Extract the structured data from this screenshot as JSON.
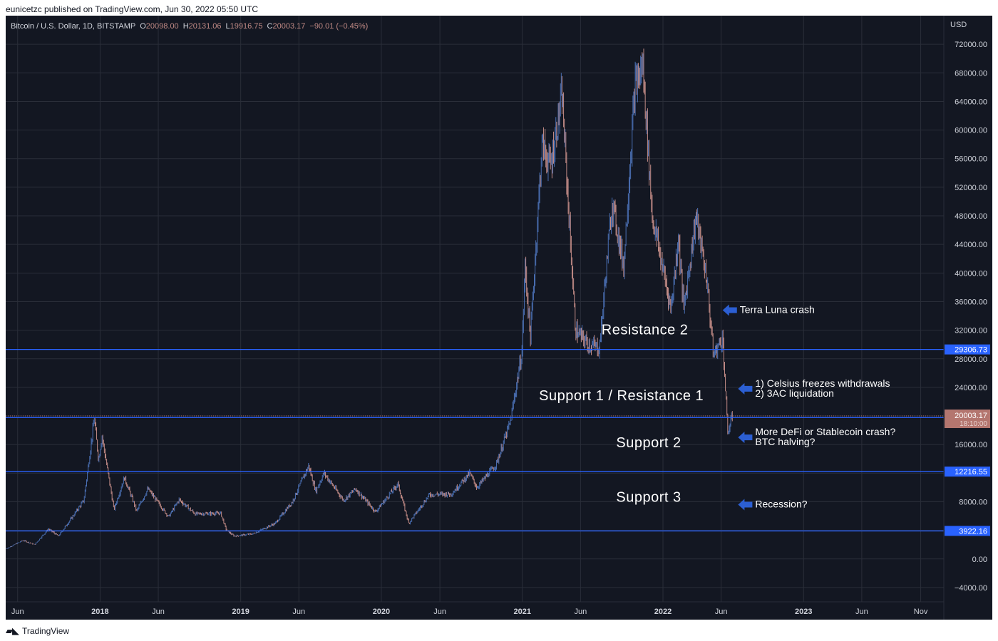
{
  "credit": "eunicetzc published on TradingView.com, Jun 30, 2022 05:50 UTC",
  "footer": {
    "brand": "TradingView",
    "logo_icon": "tradingview-logo-icon"
  },
  "colors": {
    "background": "#131722",
    "grid": "#2a2e39",
    "up": "#4a6fb3",
    "down": "#c28b86",
    "level_line": "#2962ff",
    "arrow": "#2c5fd3",
    "axis_text": "#d1d4dc",
    "price_tag_blue": "#2962ff",
    "price_tag_red": "#b4766f"
  },
  "chart_data": {
    "type": "candlestick",
    "title": "Bitcoin / U.S. Dollar, 1D, BITSTAMP",
    "ohlc_legend": {
      "o_label": "O",
      "o": "20098.00",
      "h_label": "H",
      "h": "20131.06",
      "l_label": "L",
      "l": "19916.75",
      "c_label": "C",
      "c": "20003.17",
      "change": "−90.01 (−0.45%)"
    },
    "currency": "USD",
    "ylim": [
      -6000,
      76000
    ],
    "y_ticks": [
      -4000,
      0,
      4000,
      8000,
      12000,
      16000,
      20000,
      24000,
      28000,
      32000,
      36000,
      40000,
      44000,
      48000,
      52000,
      56000,
      60000,
      64000,
      68000,
      72000
    ],
    "y_tick_labels": [
      "−4000.00",
      "0.00",
      "4000.00",
      "8000.00",
      "12000.00",
      "16000.00",
      "20000.00",
      "24000.00",
      "28000.00",
      "32000.00",
      "36000.00",
      "40000.00",
      "44000.00",
      "48000.00",
      "52000.00",
      "56000.00",
      "60000.00",
      "64000.00",
      "68000.00",
      "72000.00"
    ],
    "x_range": [
      "2017-05-01",
      "2023-12-31"
    ],
    "x_ticks": [
      {
        "date": "2017-06-01",
        "label": "Jun",
        "bold": false
      },
      {
        "date": "2018-01-01",
        "label": "2018",
        "bold": true
      },
      {
        "date": "2018-06-01",
        "label": "Jun",
        "bold": false
      },
      {
        "date": "2019-01-01",
        "label": "2019",
        "bold": true
      },
      {
        "date": "2019-06-01",
        "label": "Jun",
        "bold": false
      },
      {
        "date": "2020-01-01",
        "label": "2020",
        "bold": true
      },
      {
        "date": "2020-06-01",
        "label": "Jun",
        "bold": false
      },
      {
        "date": "2021-01-01",
        "label": "2021",
        "bold": true
      },
      {
        "date": "2021-06-01",
        "label": "Jun",
        "bold": false
      },
      {
        "date": "2022-01-01",
        "label": "2022",
        "bold": true
      },
      {
        "date": "2022-06-01",
        "label": "Jun",
        "bold": false
      },
      {
        "date": "2023-01-01",
        "label": "2023",
        "bold": true
      },
      {
        "date": "2023-06-01",
        "label": "Jun",
        "bold": false
      },
      {
        "date": "2023-11-01",
        "label": "Nov",
        "bold": false
      }
    ],
    "price_path": [
      [
        "2017-05-01",
        1400
      ],
      [
        "2017-06-15",
        2600
      ],
      [
        "2017-07-15",
        2000
      ],
      [
        "2017-08-20",
        4200
      ],
      [
        "2017-09-15",
        3200
      ],
      [
        "2017-10-20",
        5800
      ],
      [
        "2017-11-20",
        8200
      ],
      [
        "2017-12-17",
        19700
      ],
      [
        "2017-12-28",
        13800
      ],
      [
        "2018-01-06",
        17200
      ],
      [
        "2018-02-06",
        6900
      ],
      [
        "2018-03-05",
        11400
      ],
      [
        "2018-04-06",
        6700
      ],
      [
        "2018-05-05",
        9800
      ],
      [
        "2018-06-28",
        5900
      ],
      [
        "2018-07-25",
        8300
      ],
      [
        "2018-09-05",
        6300
      ],
      [
        "2018-11-10",
        6400
      ],
      [
        "2018-11-25",
        4000
      ],
      [
        "2018-12-15",
        3200
      ],
      [
        "2019-02-01",
        3500
      ],
      [
        "2019-04-01",
        5000
      ],
      [
        "2019-05-15",
        8000
      ],
      [
        "2019-06-26",
        13000
      ],
      [
        "2019-07-15",
        9500
      ],
      [
        "2019-08-05",
        12000
      ],
      [
        "2019-09-25",
        8200
      ],
      [
        "2019-10-26",
        9800
      ],
      [
        "2019-12-17",
        6600
      ],
      [
        "2020-02-13",
        10500
      ],
      [
        "2020-03-12",
        5000
      ],
      [
        "2020-05-05",
        9000
      ],
      [
        "2020-07-01",
        9100
      ],
      [
        "2020-08-17",
        12000
      ],
      [
        "2020-09-05",
        10000
      ],
      [
        "2020-10-25",
        13200
      ],
      [
        "2020-12-01",
        19200
      ],
      [
        "2020-12-31",
        29000
      ],
      [
        "2021-01-08",
        41000
      ],
      [
        "2021-01-22",
        31000
      ],
      [
        "2021-02-21",
        58000
      ],
      [
        "2021-03-15",
        55000
      ],
      [
        "2021-04-14",
        64800
      ],
      [
        "2021-05-19",
        32000
      ],
      [
        "2021-06-22",
        30000
      ],
      [
        "2021-07-20",
        29500
      ],
      [
        "2021-08-22",
        50000
      ],
      [
        "2021-09-21",
        41000
      ],
      [
        "2021-10-20",
        66000
      ],
      [
        "2021-11-10",
        69000
      ],
      [
        "2021-12-04",
        48000
      ],
      [
        "2022-01-22",
        35000
      ],
      [
        "2022-02-10",
        45000
      ],
      [
        "2022-02-24",
        35000
      ],
      [
        "2022-03-28",
        48000
      ],
      [
        "2022-04-25",
        39000
      ],
      [
        "2022-05-12",
        28500
      ],
      [
        "2022-06-05",
        31000
      ],
      [
        "2022-06-18",
        17600
      ],
      [
        "2022-06-30",
        20003
      ]
    ],
    "levels": [
      {
        "value": 29306.73,
        "label": "29306.73"
      },
      {
        "value": 19770.19,
        "label": "19770.19"
      },
      {
        "value": 12216.55,
        "label": "12216.55"
      },
      {
        "value": 3922.16,
        "label": "3922.16"
      }
    ],
    "current_price": {
      "value": 20003.17,
      "label": "20003.17",
      "countdown": "18:10:00"
    },
    "zone_labels": [
      {
        "text": "Resistance 2",
        "date": "2021-11-15",
        "value": 31400
      },
      {
        "text": "Support 1 / Resistance 1",
        "date": "2021-09-15",
        "value": 22200
      },
      {
        "text": "Support 2",
        "date": "2021-11-25",
        "value": 15600
      },
      {
        "text": "Support 3",
        "date": "2021-11-25",
        "value": 8000
      }
    ],
    "annotations": [
      {
        "lines": [
          "Terra Luna crash"
        ],
        "date": "2022-06-05",
        "value": 34800
      },
      {
        "lines": [
          "1) Celsius freezes withdrawals",
          "2) 3AC liquidation"
        ],
        "date": "2022-07-15",
        "value": 23800
      },
      {
        "lines": [
          "More DeFi or Stablecoin crash?",
          "BTC halving?"
        ],
        "date": "2022-07-15",
        "value": 17000
      },
      {
        "lines": [
          "Recession?"
        ],
        "date": "2022-07-15",
        "value": 7600
      }
    ]
  }
}
